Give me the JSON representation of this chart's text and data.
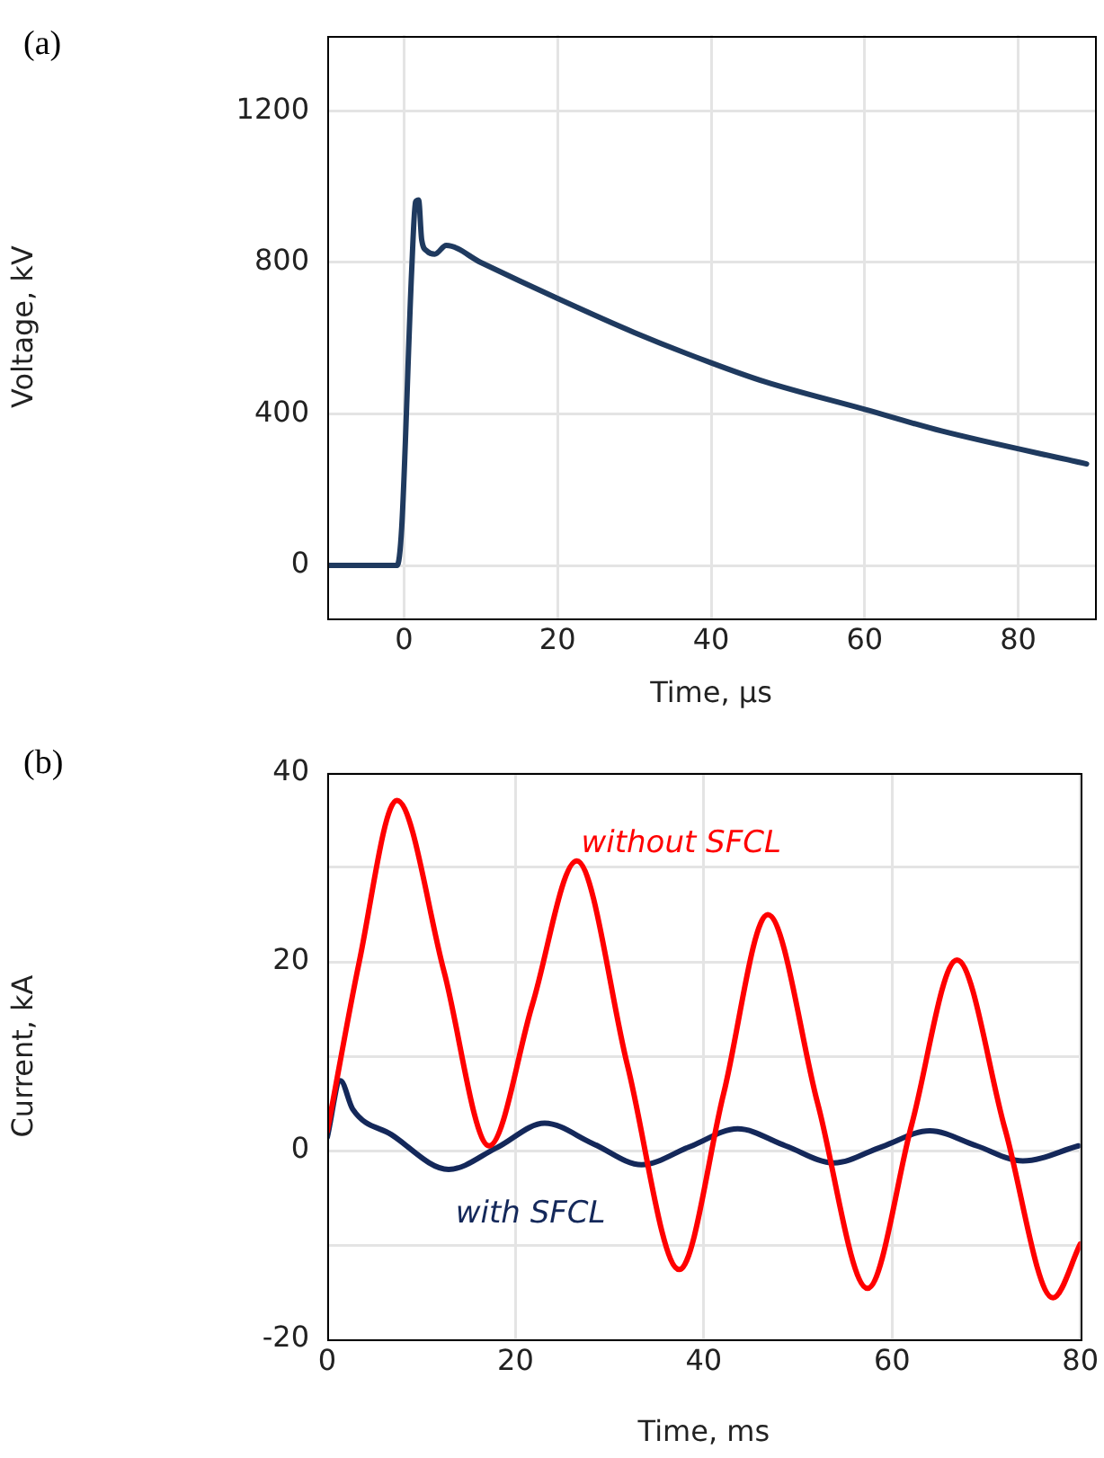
{
  "chart_data": [
    {
      "type": "line",
      "title": "(a)",
      "xlabel": "Time, µs",
      "ylabel": "Voltage, kV",
      "xlim": [
        -10,
        90
      ],
      "ylim": [
        -140,
        1400
      ],
      "xticks": [
        0,
        20,
        40,
        60,
        80
      ],
      "yticks": [
        0,
        400,
        800,
        1200
      ],
      "grid": true,
      "marker": "none",
      "series": [
        {
          "color": "#1f3a5f",
          "x": [
            -10,
            -0.9,
            -0.3,
            1.0,
            1.5,
            1.9,
            2.3,
            3.0,
            4.0,
            5.5,
            10,
            20,
            30,
            40,
            47,
            60,
            70,
            88.9
          ],
          "values": [
            0,
            0,
            100,
            780,
            960,
            965,
            860,
            830,
            822,
            845,
            800,
            705,
            615,
            535,
            485,
            412,
            355,
            268
          ]
        }
      ]
    },
    {
      "type": "line",
      "title": "(b)",
      "xlabel": "Time, ms",
      "ylabel": "Current, kA",
      "xlim": [
        0,
        80
      ],
      "ylim": [
        -20,
        40
      ],
      "xticks": [
        0,
        20,
        40,
        60,
        80
      ],
      "yticks": [
        -20,
        {
          "value": -10,
          "label": null
        },
        0,
        {
          "value": 10,
          "label": null
        },
        20,
        {
          "value": 30,
          "label": null
        },
        40
      ],
      "grid": true,
      "marker": "none",
      "series": [
        {
          "name": "without SFCL",
          "color": "#ff0000",
          "x": [
            0,
            3.4,
            7.4,
            12.4,
            17.2,
            21.8,
            26.5,
            31.9,
            37.4,
            42.1,
            46.8,
            52.1,
            57.4,
            62.1,
            66.9,
            72.0,
            77.1,
            80
          ],
          "values": [
            2,
            20,
            37.1,
            19,
            0.5,
            15.5,
            30.7,
            9,
            -12.6,
            6,
            25,
            5,
            -14.6,
            2.8,
            20.2,
            2.3,
            -15.6,
            -9.9
          ]
        },
        {
          "name": "with SFCL",
          "color": "#14285a",
          "x": [
            0,
            1.4,
            2.7,
            6.8,
            12.9,
            18,
            23.1,
            28.3,
            33.4,
            38.5,
            43.6,
            48.7,
            53.8,
            58.9,
            64,
            69,
            73.9,
            79.8
          ],
          "values": [
            1.4,
            7.4,
            4.4,
            1.7,
            -2,
            0.3,
            2.9,
            0.7,
            -1.5,
            0.4,
            2.3,
            0.5,
            -1.3,
            0.4,
            2.1,
            0.5,
            -1.1,
            0.5
          ]
        }
      ]
    }
  ]
}
